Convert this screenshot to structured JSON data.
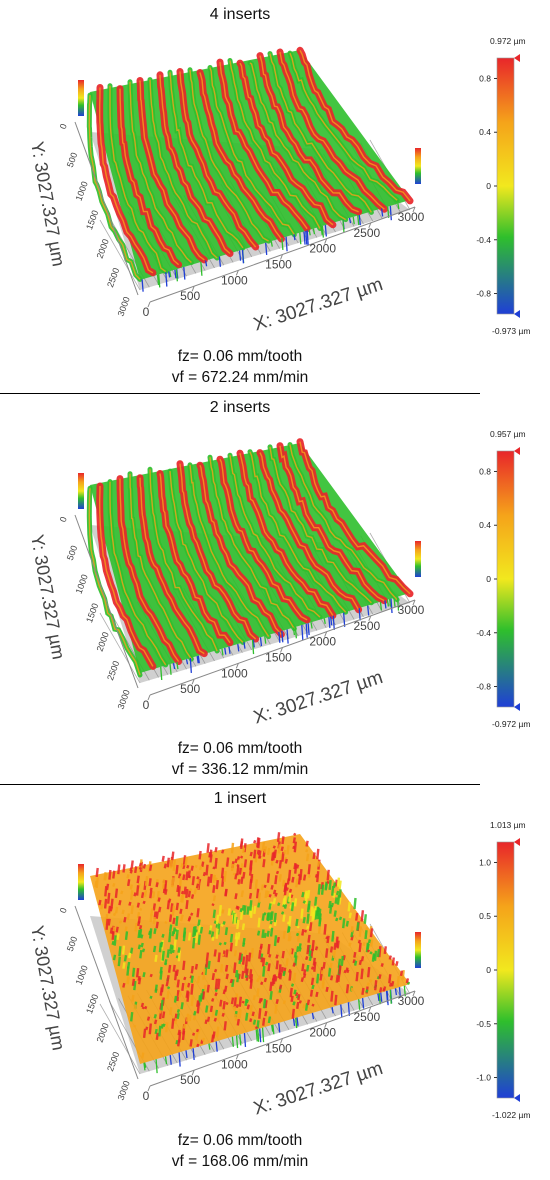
{
  "panels": [
    {
      "title": "4 inserts",
      "x_axis_label": "X: 3027.327 µm",
      "y_axis_label": "Y: 3027.327 µm",
      "x_ticks": [
        "0",
        "500",
        "1000",
        "1500",
        "2000",
        "2500",
        "3000"
      ],
      "y_ticks": [
        "0",
        "500",
        "1000",
        "1500",
        "2000",
        "2500",
        "3000"
      ],
      "scale_max_label": "0.972 µm",
      "scale_min_label": "-0.973 µm",
      "scale_ticks": [
        "0.8",
        "0.4",
        "0",
        "-0.4",
        "-0.8"
      ],
      "fz": "fz= 0.06 mm/tooth",
      "vf": "vf = 672.24 mm/min"
    },
    {
      "title": "2 inserts",
      "x_axis_label": "X: 3027.327 µm",
      "y_axis_label": "Y: 3027.327 µm",
      "x_ticks": [
        "0",
        "500",
        "1000",
        "1500",
        "2000",
        "2500",
        "3000"
      ],
      "y_ticks": [
        "0",
        "500",
        "1000",
        "1500",
        "2000",
        "2500",
        "3000"
      ],
      "scale_max_label": "0.957 µm",
      "scale_min_label": "-0.972 µm",
      "scale_ticks": [
        "0.8",
        "0.4",
        "0",
        "-0.4",
        "-0.8"
      ],
      "fz": "fz= 0.06 mm/tooth",
      "vf": "vf = 336.12 mm/min"
    },
    {
      "title": "1 insert",
      "x_axis_label": "X: 3027.327 µm",
      "y_axis_label": "Y: 3027.327 µm",
      "x_ticks": [
        "0",
        "500",
        "1000",
        "1500",
        "2000",
        "2500",
        "3000"
      ],
      "y_ticks": [
        "0",
        "500",
        "1000",
        "1500",
        "2000",
        "2500",
        "3000"
      ],
      "scale_max_label": "1.013 µm",
      "scale_min_label": "-1.022 µm",
      "scale_ticks": [
        "1.0",
        "0.5",
        "0",
        "-0.5",
        "-1.0"
      ],
      "fz": "fz= 0.06 mm/tooth",
      "vf": "vf = 168.06 mm/min"
    }
  ],
  "colors": {
    "high": "#e8262a",
    "mid_high": "#f5a31a",
    "mid": "#f2e81e",
    "mid_low": "#2fbf2c",
    "low": "#1f3fd6",
    "floor": "#a9a9a9"
  }
}
